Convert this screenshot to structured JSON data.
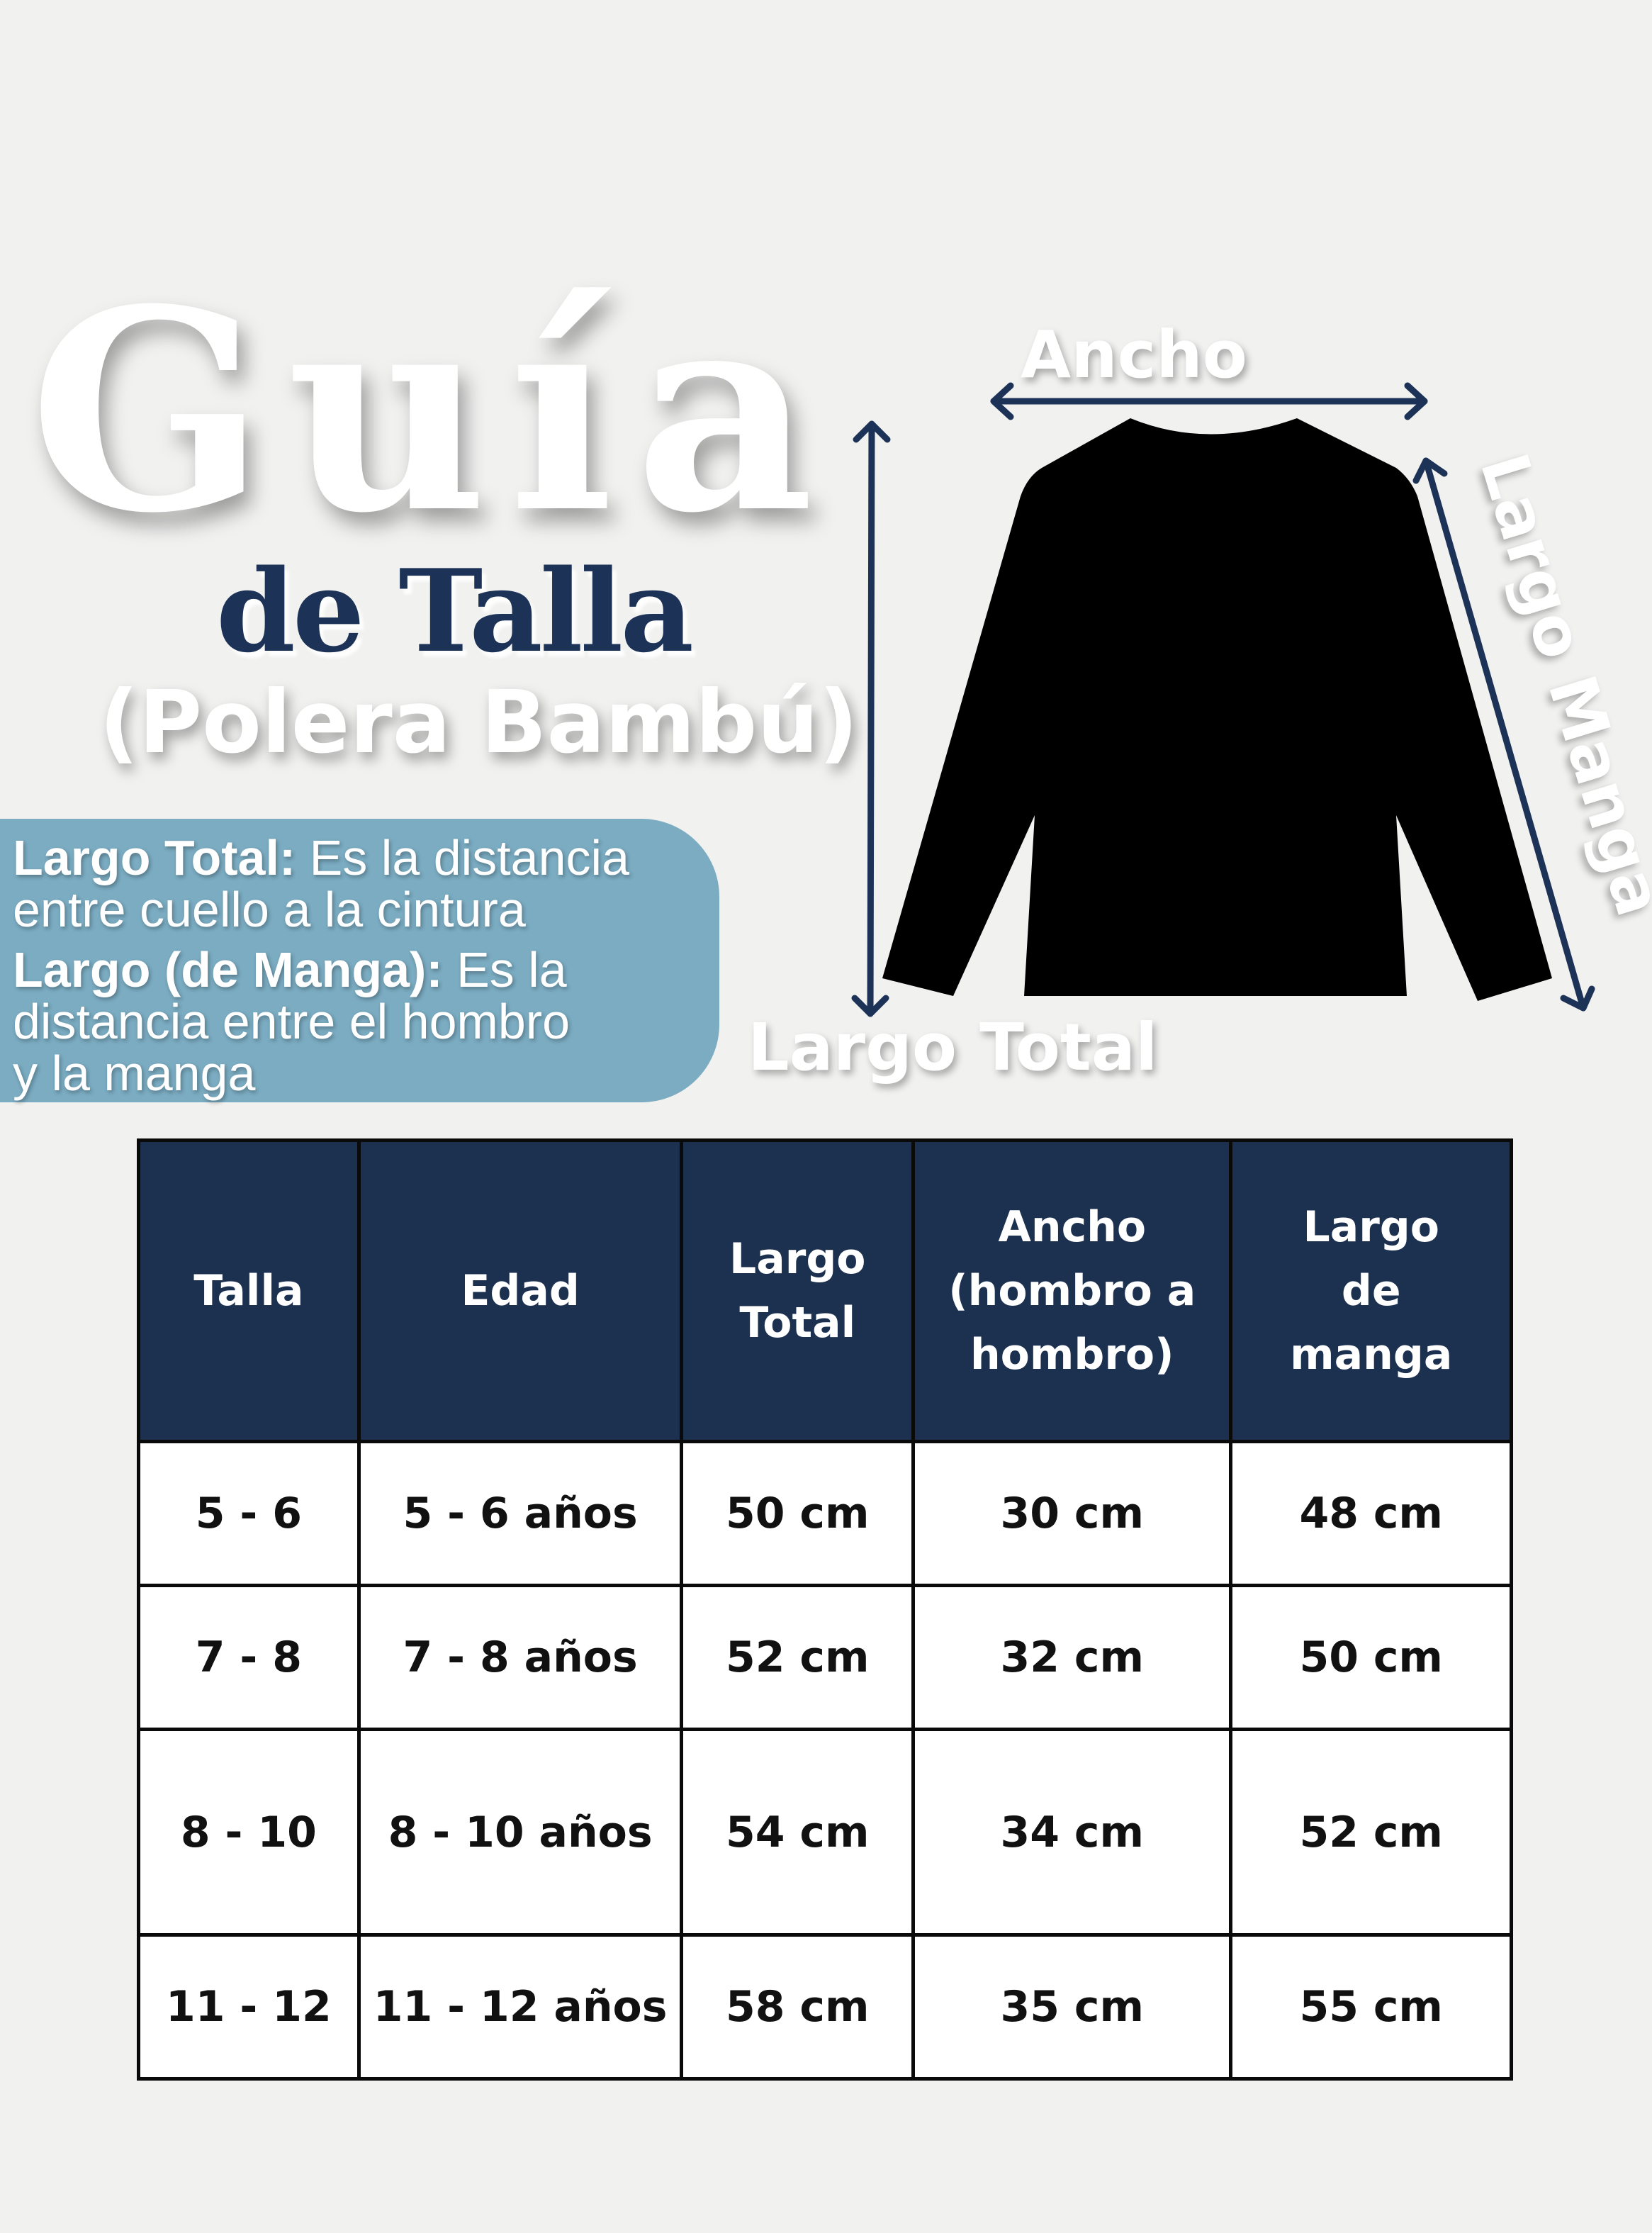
{
  "title": {
    "line1": "Guía",
    "line2": "de Talla",
    "line3": "(Polera Bambú)"
  },
  "info": {
    "largo_total_term": "Largo Total:",
    "largo_total_desc_1": " Es la distancia",
    "largo_total_desc_2": "entre cuello a la cintura",
    "largo_manga_term": "Largo (de Manga):",
    "largo_manga_desc_1": " Es la",
    "largo_manga_desc_2": "distancia entre el hombro",
    "largo_manga_desc_3": "y la manga"
  },
  "diagram": {
    "ancho": "Ancho",
    "largo_total": "Largo Total",
    "largo_manga": "Largo Manga"
  },
  "colors": {
    "navy": "#1c3050",
    "info_box": "#7bacc2",
    "background": "#f1f1f0"
  },
  "table": {
    "headers": [
      "Talla",
      "Edad",
      "Largo Total",
      "Ancho (hombro a hombro)",
      "Largo de manga"
    ],
    "rows": [
      [
        "5 - 6",
        "5 - 6 años",
        "50 cm",
        "30 cm",
        "48 cm"
      ],
      [
        "7 - 8",
        "7 - 8 años",
        "52 cm",
        "32 cm",
        "50 cm"
      ],
      [
        "8 - 10",
        "8 - 10 años",
        "54 cm",
        "34 cm",
        "52 cm"
      ],
      [
        "11 - 12",
        "11 - 12 años",
        "58 cm",
        "35 cm",
        "55 cm"
      ]
    ]
  }
}
